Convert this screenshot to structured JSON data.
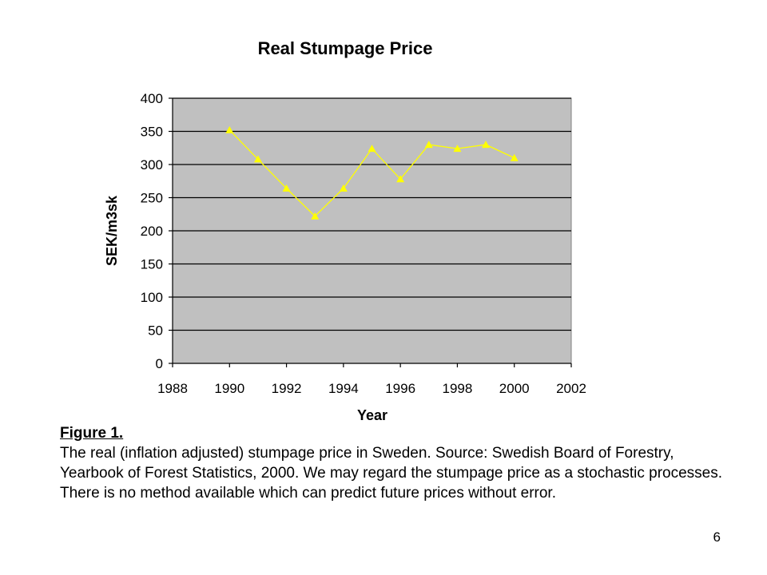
{
  "chart_data": {
    "type": "line",
    "title": "Real Stumpage Price",
    "xlabel": "Year",
    "ylabel": "SEK/m3sk",
    "xlim": [
      1988,
      2002
    ],
    "ylim": [
      0,
      400
    ],
    "xticks": [
      1988,
      1990,
      1992,
      1994,
      1996,
      1998,
      2000,
      2002
    ],
    "yticks": [
      0,
      50,
      100,
      150,
      200,
      250,
      300,
      350,
      400
    ],
    "grid": "horizontal",
    "legend": "none",
    "plot_background": "#c0c0c0",
    "series": [
      {
        "color": "#ffff00",
        "marker": "triangle",
        "x": [
          1990,
          1991,
          1992,
          1993,
          1994,
          1995,
          1996,
          1997,
          1998,
          1999,
          2000
        ],
        "y": [
          352,
          308,
          264,
          222,
          264,
          324,
          278,
          330,
          324,
          330,
          310
        ]
      }
    ]
  },
  "caption": {
    "heading": "Figure 1.",
    "body": "The real (inflation adjusted) stumpage price in Sweden. Source: Swedish Board of Forestry, Yearbook of Forest Statistics, 2000. We may regard the stumpage price as a stochastic processes. There is no method available which can predict future prices without error."
  },
  "slide_number": "6"
}
